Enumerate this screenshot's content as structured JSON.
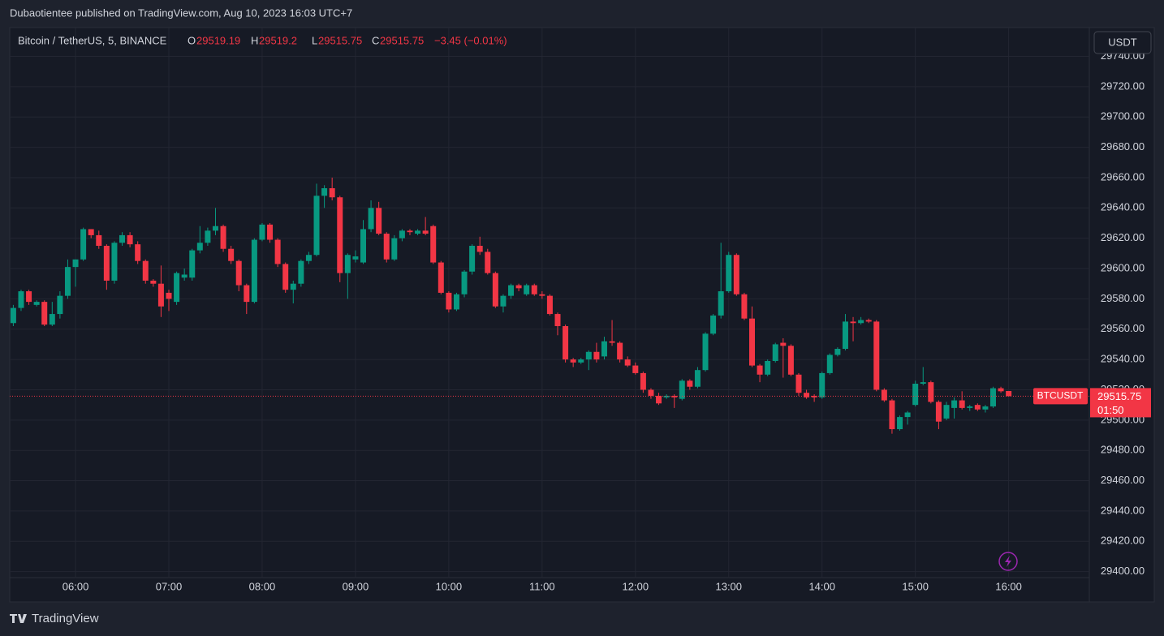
{
  "header": {
    "publisher": "Dubaotientee published on TradingView.com, Aug 10, 2023 16:03 UTC+7"
  },
  "chart_data": {
    "type": "candlestick",
    "symbol": "Bitcoin / TetherUS, 5, BINANCE",
    "ohlc_labels": [
      "O",
      "H",
      "L",
      "C"
    ],
    "change": "−3.45 (−0.01%)",
    "currency": "USDT",
    "price_label": "BTCUSDT",
    "countdown": "01:50",
    "up_color": "#089981",
    "down_color": "#f23645",
    "categories": [
      null,
      null,
      null,
      null,
      null,
      null,
      null,
      null,
      "06:00",
      null,
      null,
      null,
      null,
      null,
      null,
      null,
      null,
      null,
      null,
      null,
      "07:00",
      null,
      null,
      null,
      null,
      null,
      null,
      null,
      null,
      null,
      null,
      null,
      "08:00",
      null,
      null,
      null,
      null,
      null,
      null,
      null,
      null,
      null,
      null,
      null,
      "09:00",
      null,
      null,
      null,
      null,
      null,
      null,
      null,
      null,
      null,
      null,
      null,
      "10:00",
      null,
      null,
      null,
      null,
      null,
      null,
      null,
      null,
      null,
      null,
      null,
      "11:00",
      null,
      null,
      null,
      null,
      null,
      null,
      null,
      null,
      null,
      null,
      null,
      "12:00",
      null,
      null,
      null,
      null,
      null,
      null,
      null,
      null,
      null,
      null,
      null,
      "13:00",
      null,
      null,
      null,
      null,
      null,
      null,
      null,
      null,
      null,
      null,
      null,
      "14:00",
      null,
      null,
      null,
      null,
      null,
      null,
      null,
      null,
      null,
      null,
      null,
      "15:00",
      null,
      null,
      null,
      null,
      null,
      null,
      null,
      null,
      null,
      null,
      null,
      "16:00"
    ],
    "open": [
      29564,
      29574,
      29585,
      29576,
      29578,
      29563,
      29570,
      29582,
      29601,
      29606,
      29626,
      29622,
      29615,
      29592,
      29617,
      29622,
      29616,
      29605,
      29592,
      29590,
      29584,
      29578,
      29594,
      29594,
      29612,
      29617,
      29625,
      29628,
      29613,
      29605,
      29589,
      29578,
      29619,
      29629,
      29619,
      29603,
      29586,
      29590,
      29605,
      29609,
      29648,
      29653,
      29647,
      29597,
      29606,
      29604,
      29626,
      29640,
      29623,
      29606,
      29620,
      29625,
      29623,
      29625,
      29628,
      29604,
      29584,
      29573,
      29583,
      29598,
      29615,
      29611,
      29597,
      29575,
      29582,
      29589,
      29583,
      29589,
      29583,
      29582,
      29570,
      29562,
      29540,
      29538,
      29540,
      29545,
      29542,
      29552,
      29551,
      29540,
      29536,
      29531,
      29520,
      29516,
      29515,
      29516,
      29514,
      29526,
      29522,
      29533,
      29557,
      29569,
      29585,
      29609,
      29583,
      29567,
      29536,
      29530,
      29539,
      29551,
      29549,
      29530,
      29518,
      29516,
      29515,
      29531,
      29543,
      29547,
      29565,
      29564,
      29566,
      29565,
      29520,
      29513,
      29494,
      29502,
      29510,
      29524,
      29525,
      29512,
      29501,
      29508,
      29513,
      29508,
      29510,
      29507,
      29509,
      29521,
      29519.19
    ],
    "high": [
      29576,
      29586,
      29586,
      29579,
      29579,
      29578,
      29585,
      29606,
      29606,
      29627,
      29626,
      29625,
      29616,
      29618,
      29624,
      29624,
      29618,
      29606,
      29593,
      29602,
      29586,
      29598,
      29600,
      29613,
      29628,
      29627,
      29640,
      29629,
      29615,
      29606,
      29590,
      29620,
      29630,
      29630,
      29620,
      29604,
      29592,
      29606,
      29611,
      29656,
      29655,
      29660,
      29648,
      29610,
      29612,
      29632,
      29645,
      29644,
      29624,
      29622,
      29626,
      29626,
      29626,
      29634,
      29629,
      29605,
      29585,
      29584,
      29599,
      29616,
      29621,
      29613,
      29598,
      29583,
      29590,
      29590,
      29590,
      29590,
      29585,
      29583,
      29571,
      29563,
      29541,
      29541,
      29546,
      29551,
      29555,
      29566,
      29552,
      29542,
      29538,
      29532,
      29521,
      29518,
      29517,
      29517,
      29527,
      29527,
      29535,
      29558,
      29570,
      29617,
      29611,
      29610,
      29584,
      29575,
      29537,
      29540,
      29551,
      29554,
      29550,
      29531,
      29520,
      29517,
      29532,
      29544,
      29548,
      29570,
      29568,
      29568,
      29567,
      29566,
      29521,
      29514,
      29503,
      29506,
      29526,
      29535,
      29526,
      29513,
      29512,
      29515,
      29519,
      29510,
      29511,
      29510,
      29522,
      29522,
      29519.2
    ],
    "low": [
      29562,
      29572,
      29576,
      29575,
      29562,
      29562,
      29567,
      29580,
      29588,
      29605,
      29620,
      29613,
      29586,
      29590,
      29615,
      29614,
      29603,
      29590,
      29588,
      29568,
      29572,
      29576,
      29592,
      29592,
      29610,
      29615,
      29622,
      29611,
      29603,
      29585,
      29570,
      29577,
      29618,
      29617,
      29601,
      29584,
      29577,
      29588,
      29603,
      29608,
      29640,
      29645,
      29591,
      29580,
      29604,
      29603,
      29624,
      29622,
      29604,
      29605,
      29618,
      29622,
      29622,
      29622,
      29603,
      29583,
      29571,
      29572,
      29581,
      29596,
      29609,
      29596,
      29574,
      29571,
      29580,
      29585,
      29582,
      29582,
      29580,
      29569,
      29556,
      29538,
      29535,
      29537,
      29533,
      29538,
      29540,
      29549,
      29538,
      29535,
      29530,
      29518,
      29514,
      29510,
      29514,
      29508,
      29513,
      29520,
      29521,
      29532,
      29556,
      29567,
      29584,
      29582,
      29566,
      29535,
      29525,
      29529,
      29538,
      29528,
      29529,
      29516,
      29514,
      29512,
      29514,
      29530,
      29542,
      29546,
      29552,
      29563,
      29564,
      29519,
      29512,
      29491,
      29493,
      29497,
      29509,
      29523,
      29511,
      29494,
      29500,
      29501,
      29507,
      29506,
      29506,
      29505,
      29508,
      29518,
      29515.75
    ],
    "close": [
      29574,
      29585,
      29578,
      29578,
      29563,
      29570,
      29582,
      29601,
      29606,
      29626,
      29622,
      29615,
      29592,
      29617,
      29622,
      29616,
      29605,
      29592,
      29590,
      29575,
      29580,
      29597,
      29596,
      29612,
      29617,
      29625,
      29628,
      29613,
      29605,
      29589,
      29578,
      29619,
      29629,
      29619,
      29603,
      29586,
      29590,
      29605,
      29609,
      29648,
      29653,
      29647,
      29597,
      29609,
      29608,
      29626,
      29640,
      29623,
      29606,
      29620,
      29625,
      29624,
      29625,
      29623,
      29604,
      29584,
      29573,
      29583,
      29598,
      29615,
      29611,
      29597,
      29575,
      29582,
      29589,
      29587,
      29589,
      29583,
      29582,
      29570,
      29562,
      29540,
      29538,
      29540,
      29545,
      29540,
      29552,
      29551,
      29540,
      29536,
      29531,
      29520,
      29516,
      29511,
      29516,
      29515,
      29526,
      29522,
      29533,
      29557,
      29569,
      29585,
      29609,
      29583,
      29567,
      29536,
      29530,
      29539,
      29550,
      29549,
      29530,
      29518,
      29515,
      29515,
      29531,
      29543,
      29547,
      29565,
      29564,
      29566,
      29565,
      29520,
      29513,
      29494,
      29502,
      29505,
      29524,
      29525,
      29512,
      29499,
      29510,
      29513,
      29508,
      29509,
      29507,
      29509,
      29521,
      29519,
      29515.75
    ],
    "ylim": [
      29380,
      29759
    ],
    "yticks": [
      {
        "value": 29400,
        "label": "29400.00"
      },
      {
        "value": 29420,
        "label": "29420.00"
      },
      {
        "value": 29440,
        "label": "29440.00"
      },
      {
        "value": 29460,
        "label": "29460.00"
      },
      {
        "value": 29480,
        "label": "29480.00"
      },
      {
        "value": 29500,
        "label": "29500.00"
      },
      {
        "value": 29520,
        "label": "29520.00"
      },
      {
        "value": 29540,
        "label": "29540.00"
      },
      {
        "value": 29560,
        "label": "29560.00"
      },
      {
        "value": 29580,
        "label": "29580.00"
      },
      {
        "value": 29600,
        "label": "29600.00"
      },
      {
        "value": 29620,
        "label": "29620.00"
      },
      {
        "value": 29640,
        "label": "29640.00"
      },
      {
        "value": 29660,
        "label": "29660.00"
      },
      {
        "value": 29680,
        "label": "29680.00"
      },
      {
        "value": 29700,
        "label": "29700.00"
      },
      {
        "value": 29720,
        "label": "29720.00"
      },
      {
        "value": 29740,
        "label": "29740.00"
      }
    ],
    "grid": true
  },
  "footer": {
    "brand": "TradingView"
  }
}
